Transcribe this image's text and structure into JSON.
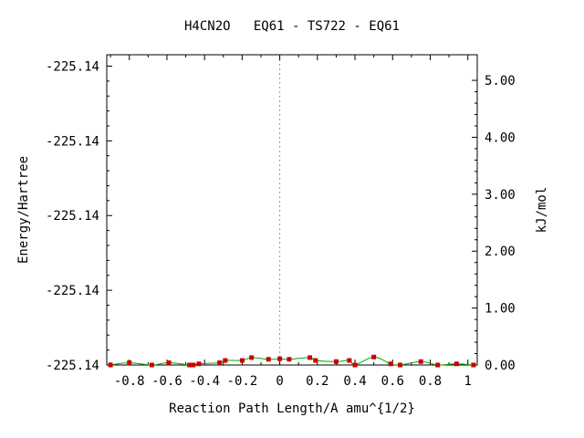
{
  "chart_data": {
    "type": "line",
    "title": "H4CN2O   EQ61 - TS722 - EQ61",
    "xlabel": "Reaction Path Length/A amu^{1/2}",
    "ylabel_left": "Energy/Hartree",
    "ylabel_right": "kJ/mol",
    "xlim": [
      -0.92,
      1.05
    ],
    "ylim_right": [
      0.0,
      5.45
    ],
    "x_ticks": [
      -0.8,
      -0.6,
      -0.4,
      -0.2,
      0,
      0.2,
      0.4,
      0.6,
      0.8,
      1
    ],
    "x_tick_labels": [
      "-0.8",
      "-0.6",
      "-0.4",
      "-0.2",
      "0",
      "0.2",
      "0.4",
      "0.6",
      "0.8",
      "1"
    ],
    "left_ticks_kj": [
      0.0,
      1.3125,
      2.625,
      3.9375,
      5.25
    ],
    "left_tick_labels": [
      "-225.14",
      "-225.14",
      "-225.14",
      "-225.14",
      "-225.14"
    ],
    "right_ticks": [
      0.0,
      1.0,
      2.0,
      3.0,
      4.0,
      5.0
    ],
    "right_tick_labels": [
      "0.00",
      "1.00",
      "2.00",
      "3.00",
      "4.00",
      "5.00"
    ],
    "ts_x": 0,
    "grid": false,
    "line_color": "#00aa00",
    "marker_color": "#cc0000",
    "series": [
      {
        "x": [
          -0.9,
          -0.8,
          -0.68,
          -0.59,
          -0.48,
          -0.46,
          -0.43,
          -0.32,
          -0.29,
          -0.2,
          -0.15,
          -0.06,
          0.0,
          0.05,
          0.16,
          0.19,
          0.3,
          0.37,
          0.4,
          0.5,
          0.59,
          0.64,
          0.75,
          0.84,
          0.94,
          1.03
        ],
        "y": [
          0.0,
          0.04,
          0.0,
          0.04,
          0.0,
          0.0,
          0.02,
          0.04,
          0.08,
          0.08,
          0.13,
          0.1,
          0.11,
          0.1,
          0.13,
          0.08,
          0.06,
          0.08,
          0.0,
          0.14,
          0.02,
          0.0,
          0.06,
          0.0,
          0.02,
          0.0
        ]
      }
    ]
  }
}
